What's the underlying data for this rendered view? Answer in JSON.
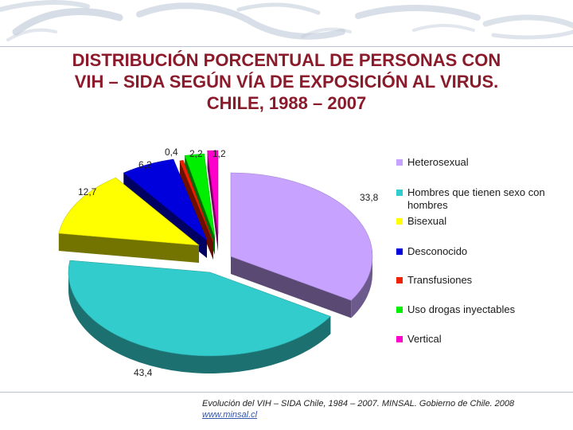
{
  "title_lines": [
    "DISTRIBUCIÓN PORCENTUAL DE PERSONAS CON",
    "VIH – SIDA SEGÚN VÍA DE EXPOSICIÓN AL VIRUS.",
    "CHILE, 1988 – 2007"
  ],
  "chart_data": {
    "type": "pie",
    "title": "DISTRIBUCIÓN PORCENTUAL DE PERSONAS CON VIH – SIDA SEGÚN VÍA DE EXPOSICIÓN AL VIRUS. CHILE, 1988 – 2007",
    "legend_position": "right",
    "slices": [
      {
        "name": "Heterosexual",
        "value": 33.8,
        "label": "33,8",
        "color": "#c7a3ff"
      },
      {
        "name": "Hombres que tienen sexo con hombres",
        "value": 43.4,
        "label": "43,4",
        "color": "#33cccc"
      },
      {
        "name": "Bisexual",
        "value": 12.7,
        "label": "12,7",
        "color": "#ffff00"
      },
      {
        "name": "Desconocido",
        "value": 6.2,
        "label": "6,2",
        "color": "#0000dd"
      },
      {
        "name": "Transfusiones",
        "value": 0.4,
        "label": "0,4",
        "color": "#ee2200"
      },
      {
        "name": "Uso drogas inyectables",
        "value": 2.2,
        "label": "2,2",
        "color": "#00ee00"
      },
      {
        "name": "Vertical",
        "value": 1.2,
        "label": "1,2",
        "color": "#ff00cc"
      }
    ]
  },
  "legend": [
    "Heterosexual",
    "Hombres que tienen sexo con hombres",
    "Bisexual",
    "Desconocido",
    "Transfusiones",
    "Uso drogas inyectables",
    "Vertical"
  ],
  "source": {
    "text": "Evolución del VIH – SIDA Chile, 1984 – 2007. MINSAL. Gobierno de Chile. 2008",
    "url": "www.minsal.cl"
  }
}
